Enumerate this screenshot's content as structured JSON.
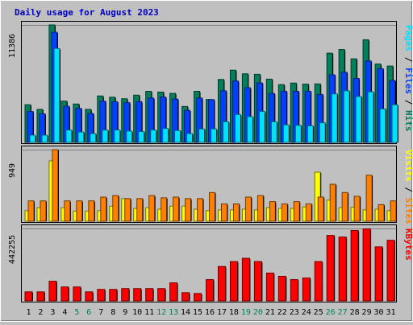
{
  "title": "Daily usage for August 2023",
  "colors": {
    "background": "#c0c0c0",
    "panel": "#c0c0c0",
    "title": "#0000c0",
    "hits": "#00805c",
    "files": "#0040ff",
    "pages": "#00e0ff",
    "visits": "#ffff00",
    "sites": "#ff8000",
    "kbytes": "#ff0000",
    "weekend_day": "#00805c"
  },
  "chart_data": [
    {
      "type": "bar",
      "panel": "hits-files-pages",
      "y_tick_label": "11386",
      "ylim": [
        0,
        11386
      ],
      "categories": [
        "1",
        "2",
        "3",
        "4",
        "5",
        "6",
        "7",
        "8",
        "9",
        "10",
        "11",
        "12",
        "13",
        "14",
        "15",
        "16",
        "17",
        "18",
        "19",
        "20",
        "21",
        "22",
        "23",
        "24",
        "25",
        "26",
        "27",
        "28",
        "29",
        "30",
        "31"
      ],
      "legend": [
        {
          "label": "Hits",
          "color_key": "hits"
        },
        {
          "label": "Files",
          "color_key": "files"
        },
        {
          "label": "Pages",
          "color_key": "pages"
        }
      ],
      "series": [
        {
          "name": "Hits",
          "color_key": "hits",
          "values": [
            3650,
            3200,
            11386,
            4000,
            3720,
            3200,
            4500,
            4380,
            4230,
            4580,
            4950,
            4880,
            4750,
            3480,
            4950,
            4150,
            6100,
            7000,
            6650,
            6600,
            6130,
            5600,
            5750,
            5650,
            5670,
            8650,
            9000,
            8100,
            9950,
            7600,
            7400
          ]
        },
        {
          "name": "Files",
          "color_key": "files",
          "values": [
            3000,
            2770,
            10680,
            3500,
            3300,
            2800,
            4000,
            3950,
            3850,
            3950,
            4300,
            4400,
            4200,
            3100,
            4300,
            4150,
            5000,
            5950,
            5300,
            5760,
            4750,
            4960,
            4960,
            4960,
            4650,
            6550,
            6800,
            6200,
            7900,
            7150,
            6000
          ]
        },
        {
          "name": "Pages",
          "color_key": "pages",
          "values": [
            700,
            700,
            9100,
            1200,
            1000,
            850,
            1200,
            1200,
            1100,
            1050,
            1200,
            1350,
            1150,
            850,
            1300,
            1300,
            2000,
            2700,
            2500,
            3000,
            2000,
            1700,
            1650,
            1600,
            1900,
            4700,
            5000,
            4450,
            4900,
            3250,
            3650
          ]
        }
      ]
    },
    {
      "type": "bar",
      "panel": "visits-sites",
      "y_tick_label": "949",
      "ylim": [
        0,
        949
      ],
      "categories": [
        "1",
        "2",
        "3",
        "4",
        "5",
        "6",
        "7",
        "8",
        "9",
        "10",
        "11",
        "12",
        "13",
        "14",
        "15",
        "16",
        "17",
        "18",
        "19",
        "20",
        "21",
        "22",
        "23",
        "24",
        "25",
        "26",
        "27",
        "28",
        "29",
        "30",
        "31"
      ],
      "legend": [
        {
          "label": "Sites",
          "color_key": "sites"
        },
        {
          "label": "Visits",
          "color_key": "visits"
        }
      ],
      "series": [
        {
          "name": "Visits",
          "color_key": "visits",
          "values": [
            140,
            180,
            800,
            180,
            135,
            135,
            140,
            200,
            300,
            170,
            180,
            160,
            200,
            200,
            160,
            140,
            150,
            150,
            160,
            150,
            180,
            170,
            170,
            190,
            650,
            280,
            180,
            185,
            150,
            160,
            140
          ]
        },
        {
          "name": "Sites",
          "color_key": "sites",
          "values": [
            270,
            270,
            949,
            270,
            270,
            270,
            320,
            340,
            300,
            300,
            340,
            310,
            320,
            300,
            300,
            380,
            230,
            230,
            320,
            340,
            260,
            230,
            260,
            230,
            320,
            490,
            380,
            330,
            610,
            220,
            270
          ]
        }
      ]
    },
    {
      "type": "bar",
      "panel": "kbytes",
      "y_tick_label": "442255",
      "ylim": [
        0,
        442255
      ],
      "categories": [
        "1",
        "2",
        "3",
        "4",
        "5",
        "6",
        "7",
        "8",
        "9",
        "10",
        "11",
        "12",
        "13",
        "14",
        "15",
        "16",
        "17",
        "18",
        "19",
        "20",
        "21",
        "22",
        "23",
        "24",
        "25",
        "26",
        "27",
        "28",
        "29",
        "30",
        "31"
      ],
      "legend": [
        {
          "label": "KBytes",
          "color_key": "kbytes"
        }
      ],
      "series": [
        {
          "name": "KBytes",
          "color_key": "kbytes",
          "values": [
            55000,
            55000,
            120000,
            85000,
            85000,
            55000,
            70000,
            70000,
            75000,
            75000,
            75000,
            75000,
            110000,
            50000,
            45000,
            130000,
            210000,
            240000,
            260000,
            240000,
            170000,
            150000,
            130000,
            140000,
            240000,
            400000,
            390000,
            430000,
            440000,
            330000,
            370000
          ]
        }
      ]
    }
  ],
  "x_axis": {
    "labels": [
      {
        "text": "1",
        "weekend": false
      },
      {
        "text": "2",
        "weekend": false
      },
      {
        "text": "3",
        "weekend": false
      },
      {
        "text": "4",
        "weekend": false
      },
      {
        "text": "5",
        "weekend": true
      },
      {
        "text": "6",
        "weekend": true
      },
      {
        "text": "7",
        "weekend": false
      },
      {
        "text": "8",
        "weekend": false
      },
      {
        "text": "9",
        "weekend": false
      },
      {
        "text": "10",
        "weekend": false
      },
      {
        "text": "11",
        "weekend": false
      },
      {
        "text": "12",
        "weekend": true
      },
      {
        "text": "13",
        "weekend": true
      },
      {
        "text": "14",
        "weekend": false
      },
      {
        "text": "15",
        "weekend": false
      },
      {
        "text": "16",
        "weekend": false
      },
      {
        "text": "17",
        "weekend": false
      },
      {
        "text": "18",
        "weekend": false
      },
      {
        "text": "19",
        "weekend": true
      },
      {
        "text": "20",
        "weekend": true
      },
      {
        "text": "21",
        "weekend": false
      },
      {
        "text": "22",
        "weekend": false
      },
      {
        "text": "23",
        "weekend": false
      },
      {
        "text": "24",
        "weekend": false
      },
      {
        "text": "25",
        "weekend": false
      },
      {
        "text": "26",
        "weekend": true
      },
      {
        "text": "27",
        "weekend": true
      },
      {
        "text": "28",
        "weekend": false
      },
      {
        "text": "29",
        "weekend": false
      },
      {
        "text": "30",
        "weekend": false
      },
      {
        "text": "31",
        "weekend": false
      }
    ]
  }
}
